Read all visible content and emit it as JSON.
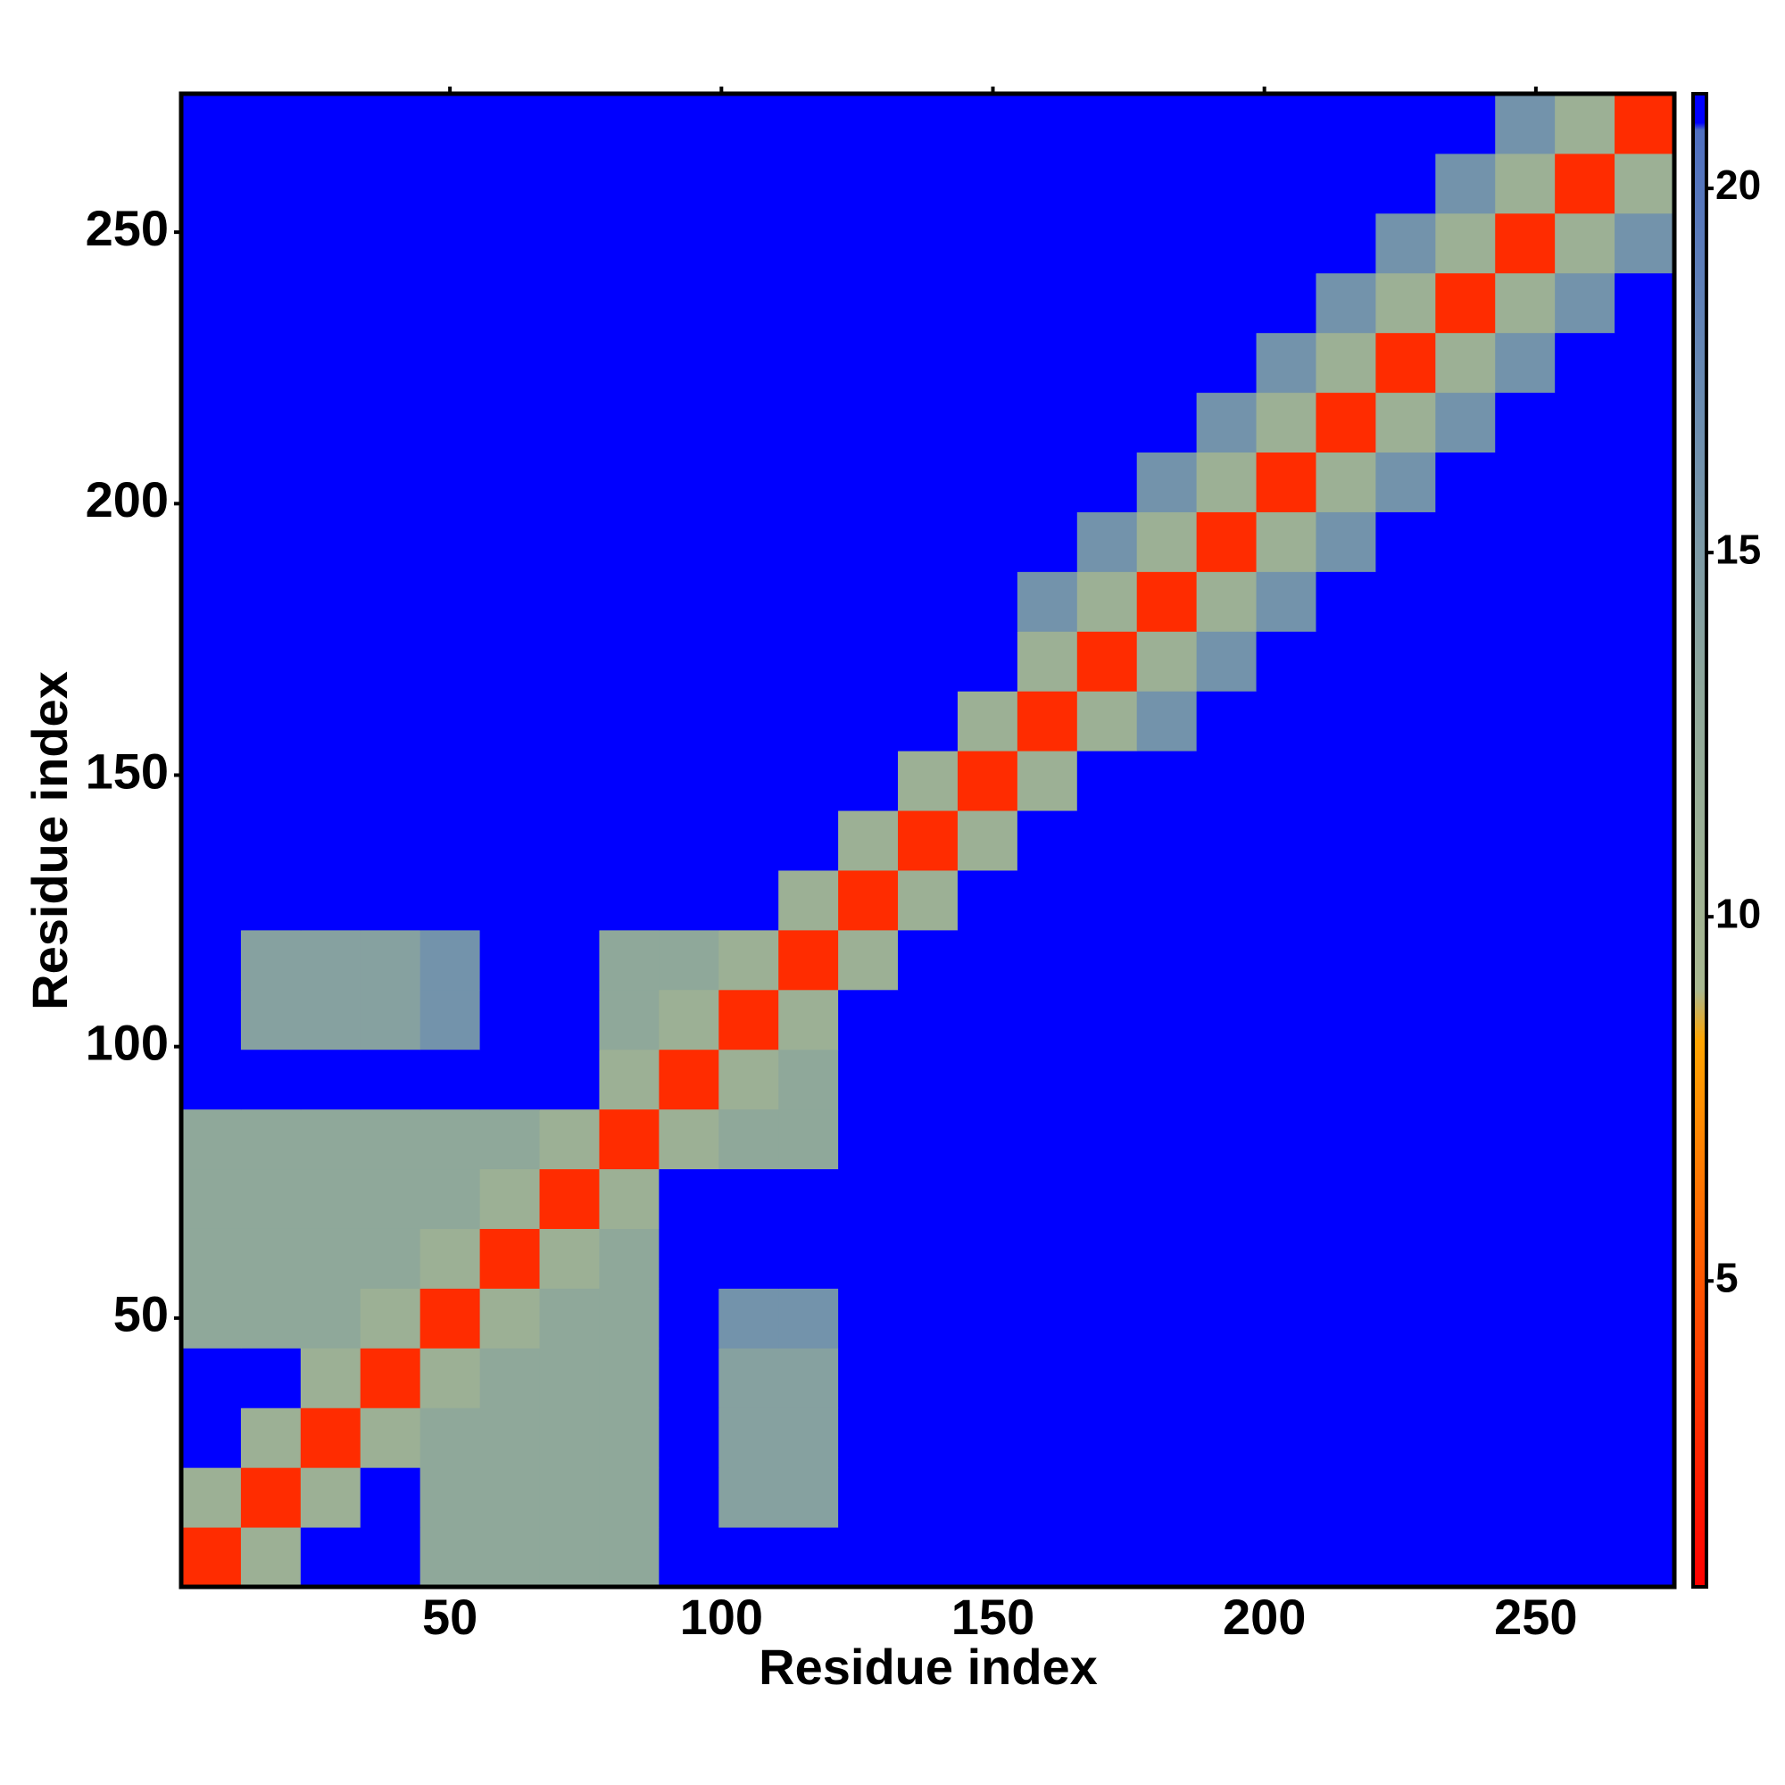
{
  "chart_data": {
    "type": "heatmap",
    "x_label": "Residue index",
    "y_label": "Residue index",
    "x_bins": [
      0.5,
      11.5,
      22.5,
      33.5,
      44.5,
      55.5,
      66.5,
      77.5,
      88.5,
      99.5,
      110.5,
      121.5,
      132.5,
      143.5,
      154.5,
      165.5,
      176.5,
      187.5,
      198.5,
      209.5,
      220.5,
      231.5,
      242.5,
      253.5,
      264.5,
      275.5
    ],
    "y_bins": [
      0.5,
      11.5,
      22.5,
      33.5,
      44.5,
      55.5,
      66.5,
      77.5,
      88.5,
      99.5,
      110.5,
      121.5,
      132.5,
      143.5,
      154.5,
      165.5,
      176.5,
      187.5,
      198.5,
      209.5,
      220.5,
      231.5,
      242.5,
      253.5,
      264.5,
      275.5
    ],
    "xlim": [
      0.5,
      275.5
    ],
    "ylim": [
      0.5,
      275.5
    ],
    "xticks": [
      50,
      100,
      150,
      200,
      250
    ],
    "yticks": [
      50,
      100,
      150,
      200,
      250
    ],
    "clim": [
      0.8,
      21.3
    ],
    "cticks": [
      5,
      10,
      15,
      20
    ],
    "colorscale": [
      {
        "value": 0.8,
        "color": "#ff0000"
      },
      {
        "value": 4.5,
        "color": "#ff4a00"
      },
      {
        "value": 8.3,
        "color": "#ffa500"
      },
      {
        "value": 9,
        "color": "#a8b890"
      },
      {
        "value": 13,
        "color": "#8fa89a"
      },
      {
        "value": 17,
        "color": "#6a8cb0"
      },
      {
        "value": 20.8,
        "color": "#4f6fc0"
      },
      {
        "value": 20.9,
        "color": "#0000ff"
      },
      {
        "value": 21.3,
        "color": "#0000ff"
      }
    ],
    "values": [
      [
        3,
        11,
        21,
        21,
        13,
        13,
        13,
        13,
        21,
        21,
        21,
        21,
        21,
        21,
        21,
        21,
        21,
        21,
        21,
        21,
        21,
        21,
        21,
        21,
        21
      ],
      [
        11,
        3,
        11,
        21,
        13,
        13,
        13,
        13,
        21,
        14,
        14,
        21,
        21,
        21,
        21,
        21,
        21,
        21,
        21,
        21,
        21,
        21,
        21,
        21,
        21
      ],
      [
        21,
        11,
        3,
        11,
        13,
        13,
        13,
        13,
        21,
        14,
        14,
        21,
        21,
        21,
        21,
        21,
        21,
        21,
        21,
        21,
        21,
        21,
        21,
        21,
        21
      ],
      [
        21,
        21,
        11,
        3,
        11,
        13,
        13,
        13,
        21,
        14,
        14,
        21,
        21,
        21,
        21,
        21,
        21,
        21,
        21,
        21,
        21,
        21,
        21,
        21,
        21
      ],
      [
        13,
        13,
        13,
        11,
        3,
        11,
        13,
        13,
        21,
        16,
        16,
        21,
        21,
        21,
        21,
        21,
        21,
        21,
        21,
        21,
        21,
        21,
        21,
        21,
        21
      ],
      [
        13,
        13,
        13,
        13,
        11,
        3,
        11,
        13,
        21,
        21,
        21,
        21,
        21,
        21,
        21,
        21,
        21,
        21,
        21,
        21,
        21,
        21,
        21,
        21,
        21
      ],
      [
        13,
        13,
        13,
        13,
        13,
        11,
        3,
        11,
        21,
        21,
        21,
        21,
        21,
        21,
        21,
        21,
        21,
        21,
        21,
        21,
        21,
        21,
        21,
        21,
        21
      ],
      [
        13,
        13,
        13,
        13,
        13,
        13,
        11,
        3,
        11,
        13,
        13,
        21,
        21,
        21,
        21,
        21,
        21,
        21,
        21,
        21,
        21,
        21,
        21,
        21,
        21
      ],
      [
        21,
        21,
        21,
        21,
        21,
        21,
        21,
        11,
        3,
        11,
        13,
        21,
        21,
        21,
        21,
        21,
        21,
        21,
        21,
        21,
        21,
        21,
        21,
        21,
        21
      ],
      [
        21,
        14,
        14,
        14,
        16,
        21,
        21,
        13,
        11,
        3,
        11,
        21,
        21,
        21,
        21,
        21,
        21,
        21,
        21,
        21,
        21,
        21,
        21,
        21,
        21
      ],
      [
        21,
        14,
        14,
        14,
        16,
        21,
        21,
        13,
        13,
        11,
        3,
        11,
        21,
        21,
        21,
        21,
        21,
        21,
        21,
        21,
        21,
        21,
        21,
        21,
        21
      ],
      [
        21,
        21,
        21,
        21,
        21,
        21,
        21,
        21,
        21,
        21,
        11,
        3,
        11,
        21,
        21,
        21,
        21,
        21,
        21,
        21,
        21,
        21,
        21,
        21,
        21
      ],
      [
        21,
        21,
        21,
        21,
        21,
        21,
        21,
        21,
        21,
        21,
        21,
        11,
        3,
        11,
        21,
        21,
        21,
        21,
        21,
        21,
        21,
        21,
        21,
        21,
        21
      ],
      [
        21,
        21,
        21,
        21,
        21,
        21,
        21,
        21,
        21,
        21,
        21,
        21,
        11,
        3,
        11,
        21,
        21,
        21,
        21,
        21,
        21,
        21,
        21,
        21,
        21
      ],
      [
        21,
        21,
        21,
        21,
        21,
        21,
        21,
        21,
        21,
        21,
        21,
        21,
        21,
        11,
        3,
        11,
        16,
        21,
        21,
        21,
        21,
        21,
        21,
        21,
        21
      ],
      [
        21,
        21,
        21,
        21,
        21,
        21,
        21,
        21,
        21,
        21,
        21,
        21,
        21,
        21,
        11,
        3,
        11,
        16,
        21,
        21,
        21,
        21,
        21,
        21,
        21
      ],
      [
        21,
        21,
        21,
        21,
        21,
        21,
        21,
        21,
        21,
        21,
        21,
        21,
        21,
        21,
        16,
        11,
        3,
        11,
        16,
        21,
        21,
        21,
        21,
        21,
        21
      ],
      [
        21,
        21,
        21,
        21,
        21,
        21,
        21,
        21,
        21,
        21,
        21,
        21,
        21,
        21,
        21,
        16,
        11,
        3,
        11,
        16,
        21,
        21,
        21,
        21,
        21
      ],
      [
        21,
        21,
        21,
        21,
        21,
        21,
        21,
        21,
        21,
        21,
        21,
        21,
        21,
        21,
        21,
        21,
        16,
        11,
        3,
        11,
        16,
        21,
        21,
        21,
        21
      ],
      [
        21,
        21,
        21,
        21,
        21,
        21,
        21,
        21,
        21,
        21,
        21,
        21,
        21,
        21,
        21,
        21,
        21,
        16,
        11,
        3,
        11,
        16,
        21,
        21,
        21
      ],
      [
        21,
        21,
        21,
        21,
        21,
        21,
        21,
        21,
        21,
        21,
        21,
        21,
        21,
        21,
        21,
        21,
        21,
        21,
        16,
        11,
        3,
        11,
        16,
        21,
        21
      ],
      [
        21,
        21,
        21,
        21,
        21,
        21,
        21,
        21,
        21,
        21,
        21,
        21,
        21,
        21,
        21,
        21,
        21,
        21,
        21,
        16,
        11,
        3,
        11,
        16,
        21
      ],
      [
        21,
        21,
        21,
        21,
        21,
        21,
        21,
        21,
        21,
        21,
        21,
        21,
        21,
        21,
        21,
        21,
        21,
        21,
        21,
        21,
        16,
        11,
        3,
        11,
        16
      ],
      [
        21,
        21,
        21,
        21,
        21,
        21,
        21,
        21,
        21,
        21,
        21,
        21,
        21,
        21,
        21,
        21,
        21,
        21,
        21,
        21,
        21,
        16,
        11,
        3,
        11
      ],
      [
        21,
        21,
        21,
        21,
        21,
        21,
        21,
        21,
        21,
        21,
        21,
        21,
        21,
        21,
        21,
        21,
        21,
        21,
        21,
        21,
        21,
        21,
        16,
        11,
        3
      ]
    ]
  }
}
